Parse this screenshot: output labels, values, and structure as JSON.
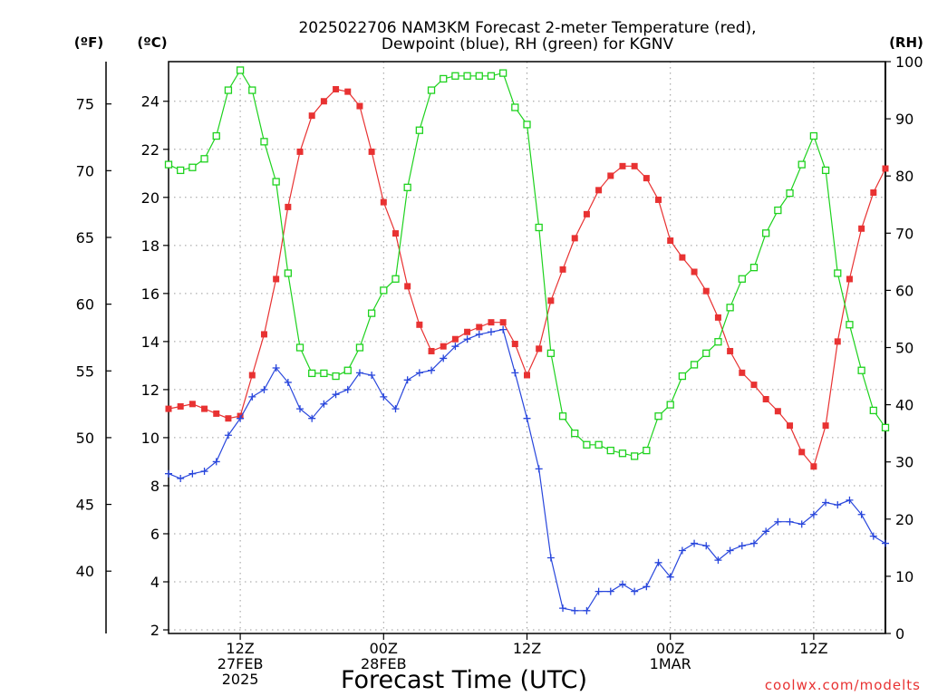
{
  "chart_data": {
    "type": "line",
    "title": "2025022706 NAM3KM Forecast 2-meter Temperature (red),",
    "subtitle": "Dewpoint (blue), RH (green) for KGNV",
    "xlabel": "Forecast Time (UTC)",
    "credit": "coolwx.com/modelts",
    "axes": {
      "left_f": {
        "label": "(ºF)",
        "ticks": [
          "40",
          "45",
          "50",
          "55",
          "60",
          "65",
          "70",
          "75"
        ],
        "tick_values": [
          40,
          45,
          50,
          55,
          60,
          65,
          70,
          75
        ]
      },
      "left_c": {
        "label": "(ºC)",
        "ticks": [
          "2",
          "4",
          "6",
          "8",
          "10",
          "12",
          "14",
          "16",
          "18",
          "20",
          "22",
          "24"
        ],
        "tick_values": [
          2,
          4,
          6,
          8,
          10,
          12,
          14,
          16,
          18,
          20,
          22,
          24
        ],
        "ylim": [
          1.85,
          25.65
        ]
      },
      "right_rh": {
        "label": "(RH)",
        "ticks": [
          "0",
          "10",
          "20",
          "30",
          "40",
          "50",
          "60",
          "70",
          "80",
          "90",
          "100"
        ],
        "tick_values": [
          0,
          10,
          20,
          30,
          40,
          50,
          60,
          70,
          80,
          90,
          100
        ],
        "ylim": [
          0,
          100
        ]
      }
    },
    "x_range_hours": [
      6,
      66
    ],
    "x_ticks": [
      {
        "hour": 12,
        "lines": [
          "12Z",
          "27FEB",
          "2025"
        ]
      },
      {
        "hour": 24,
        "lines": [
          "00Z",
          "28FEB"
        ]
      },
      {
        "hour": 36,
        "lines": [
          "12Z"
        ]
      },
      {
        "hour": 48,
        "lines": [
          "00Z",
          "1MAR"
        ]
      },
      {
        "hour": 60,
        "lines": [
          "12Z"
        ]
      }
    ],
    "x_hours": [
      6,
      7,
      8,
      9,
      10,
      11,
      12,
      13,
      14,
      15,
      16,
      17,
      18,
      19,
      20,
      21,
      22,
      23,
      24,
      25,
      26,
      27,
      28,
      29,
      30,
      31,
      32,
      33,
      34,
      35,
      36,
      37,
      38,
      39,
      40,
      41,
      42,
      43,
      44,
      45,
      46,
      47,
      48,
      49,
      50,
      51,
      52,
      53,
      54,
      55,
      56,
      57,
      58,
      59,
      60,
      61,
      62,
      63,
      64,
      65,
      66
    ],
    "series": [
      {
        "name": "Temperature (red)",
        "unit": "°C",
        "color": "#e83232",
        "marker": "filled-square",
        "values": [
          11.2,
          11.3,
          11.4,
          11.2,
          11.0,
          10.8,
          10.9,
          12.6,
          14.3,
          16.6,
          19.6,
          21.9,
          23.4,
          24.0,
          24.5,
          24.4,
          23.8,
          21.9,
          19.8,
          18.5,
          16.3,
          14.7,
          13.6,
          13.8,
          14.1,
          14.4,
          14.6,
          14.8,
          14.8,
          13.9,
          12.6,
          13.7,
          15.7,
          17.0,
          18.3,
          19.3,
          20.3,
          20.9,
          21.3,
          21.3,
          20.8,
          19.9,
          18.2,
          17.5,
          16.9,
          16.1,
          15.0,
          13.6,
          12.7,
          12.2,
          11.6,
          11.1,
          10.5,
          9.4,
          8.8,
          10.5,
          14.0,
          16.6,
          18.7,
          20.2,
          21.2
        ]
      },
      {
        "name": "Dewpoint (blue)",
        "unit": "°C",
        "color": "#2846dc",
        "marker": "plus",
        "values": [
          8.5,
          8.3,
          8.5,
          8.6,
          9.0,
          10.1,
          10.8,
          11.7,
          12.0,
          12.9,
          12.3,
          11.2,
          10.8,
          11.4,
          11.8,
          12.0,
          12.7,
          12.6,
          11.7,
          11.2,
          12.4,
          12.7,
          12.8,
          13.3,
          13.8,
          14.1,
          14.3,
          14.4,
          14.5,
          12.7,
          10.8,
          8.7,
          5.0,
          2.9,
          2.8,
          2.8,
          3.6,
          3.6,
          3.9,
          3.6,
          3.8,
          4.8,
          4.2,
          5.3,
          5.6,
          5.5,
          4.9,
          5.3,
          5.5,
          5.6,
          6.1,
          6.5,
          6.5,
          6.4,
          6.8,
          7.3,
          7.2,
          7.4,
          6.8,
          5.9,
          5.6
        ]
      },
      {
        "name": "RH (green)",
        "unit": "%",
        "color": "#1ed21e",
        "marker": "open-square",
        "values": [
          82,
          81,
          81.5,
          83,
          87,
          95,
          98.5,
          95,
          86,
          79,
          63,
          50,
          45.5,
          45.5,
          45,
          46,
          50,
          56,
          60,
          62,
          78,
          88,
          95,
          97,
          97.5,
          97.5,
          97.5,
          97.5,
          98,
          92,
          89,
          71,
          49,
          38,
          35,
          33,
          33,
          32,
          31.5,
          31,
          32,
          38,
          40,
          45,
          47,
          49,
          51,
          57,
          62,
          64,
          70,
          74,
          77,
          82,
          87,
          81,
          63,
          54,
          46,
          39,
          36
        ]
      }
    ]
  }
}
